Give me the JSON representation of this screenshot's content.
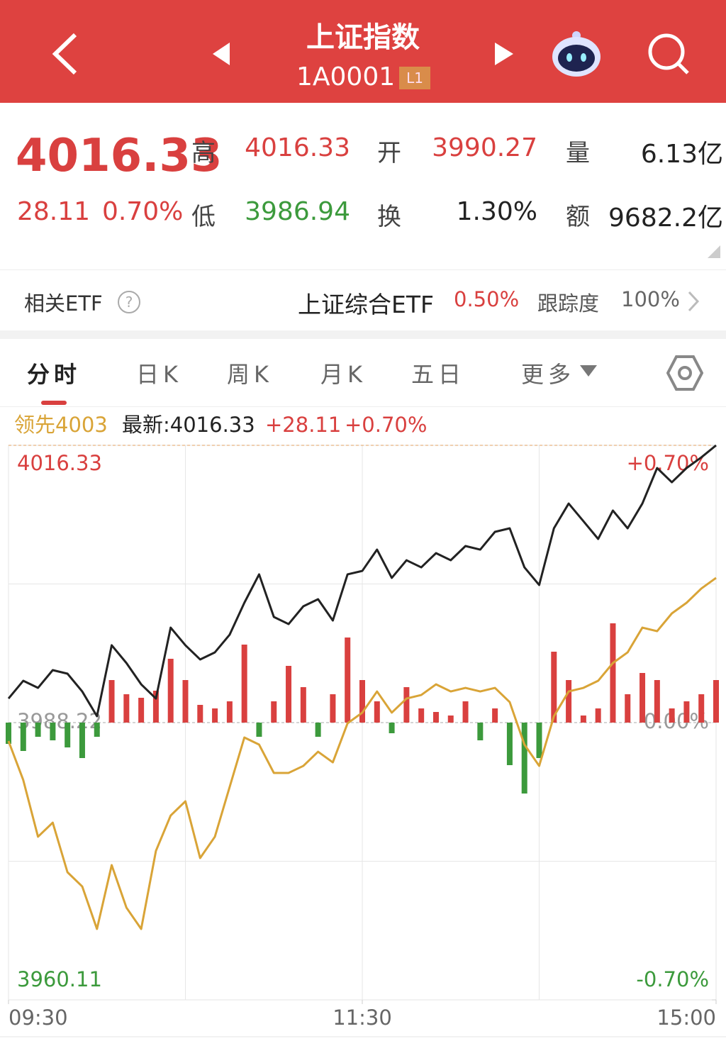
{
  "header": {
    "title": "上证指数",
    "code": "1A0001",
    "badge": "L1"
  },
  "quote": {
    "price": "4016.33",
    "change": "28.11",
    "change_pct": "0.70%",
    "items": [
      {
        "label": "高",
        "value": "4016.33"
      },
      {
        "label": "开",
        "value": "3990.27"
      },
      {
        "label": "量",
        "value": "6.13亿"
      },
      {
        "label": "低",
        "value": "3986.94"
      },
      {
        "label": "换",
        "value": "1.30%"
      },
      {
        "label": "额",
        "value": "9682.2亿"
      }
    ]
  },
  "etf": {
    "label": "相关ETF",
    "help": "?",
    "name": "上证综合ETF",
    "pct": "0.50%",
    "track_label": "跟踪度",
    "track": "100%"
  },
  "tabs": [
    "分时",
    "日K",
    "周K",
    "月K",
    "五日",
    "更多"
  ],
  "chart_data": {
    "type": "line",
    "legend_change": "+28.11",
    "legend_pct": "+0.70%",
    "x": [
      "09:30",
      "09:35",
      "09:40",
      "09:45",
      "09:50",
      "09:55",
      "10:00",
      "10:05",
      "10:10",
      "10:15",
      "10:20",
      "10:25",
      "10:30",
      "10:35",
      "10:40",
      "10:45",
      "10:50",
      "10:55",
      "11:00",
      "11:05",
      "11:10",
      "11:15",
      "11:20",
      "11:25",
      "11:30",
      "13:05",
      "13:10",
      "13:15",
      "13:20",
      "13:25",
      "13:30",
      "13:35",
      "13:40",
      "13:45",
      "13:50",
      "13:55",
      "14:00",
      "14:05",
      "14:10",
      "14:15",
      "14:20",
      "14:25",
      "14:30",
      "14:35",
      "14:40",
      "14:45",
      "14:50",
      "14:55",
      "15:00"
    ],
    "series": [
      {
        "name": "最新:4016.33",
        "color": "#222222",
        "values": [
          3990.66,
          3992.46,
          3991.74,
          3993.54,
          3993.18,
          3991.38,
          3988.87,
          3996.06,
          3994.26,
          3992.1,
          3990.66,
          3997.85,
          3996.06,
          3994.62,
          3995.34,
          3997.13,
          4000.37,
          4003.25,
          3998.93,
          3998.21,
          4000.01,
          4000.73,
          3998.57,
          4003.25,
          4003.6,
          4005.76,
          4002.89,
          4004.68,
          4003.96,
          4005.4,
          4004.68,
          4006.12,
          4005.76,
          4007.56,
          4007.92,
          4003.96,
          4002.17,
          4007.92,
          4010.43,
          4008.64,
          4006.84,
          4009.72,
          4007.92,
          4010.43,
          4014.03,
          4012.59,
          4014.03,
          4015.11,
          4016.33
        ]
      },
      {
        "name": "领先4003",
        "color": "#d9a437",
        "values": [
          3986.35,
          3982.4,
          3976.65,
          3978.08,
          3973.05,
          3971.61,
          3967.3,
          3973.77,
          3969.46,
          3967.3,
          3975.21,
          3978.8,
          3980.24,
          3974.49,
          3976.65,
          3981.68,
          3986.71,
          3985.99,
          3983.12,
          3983.12,
          3983.83,
          3985.27,
          3984.19,
          3988.15,
          3989.23,
          3991.38,
          3989.23,
          3990.66,
          3991.02,
          3992.1,
          3991.38,
          3991.74,
          3991.38,
          3991.74,
          3990.3,
          3985.99,
          3983.83,
          3988.87,
          3991.38,
          3991.74,
          3992.46,
          3994.26,
          3995.34,
          3997.85,
          3997.49,
          3999.29,
          4000.37,
          4001.81,
          4002.89
        ]
      },
      {
        "type": "bar",
        "axis": "y2",
        "up_color": "#d9403f",
        "down_color": "#3c9a3c",
        "values": [
          -30,
          -40,
          -20,
          -25,
          -35,
          -50,
          -20,
          60,
          40,
          35,
          45,
          90,
          60,
          25,
          20,
          30,
          110,
          -20,
          30,
          80,
          50,
          -20,
          40,
          120,
          60,
          30,
          -15,
          50,
          20,
          15,
          10,
          30,
          -25,
          20,
          -60,
          -100,
          -50,
          100,
          60,
          10,
          20,
          140,
          40,
          70,
          60,
          20,
          30,
          40,
          60
        ]
      }
    ],
    "ylim": [
      3960.11,
      4016.33
    ],
    "yticks": [
      4016.33,
      3988.22,
      3960.11
    ],
    "y2lim": [
      -391,
      391
    ],
    "y3lim": [
      -0.7,
      0.7
    ],
    "y3ticks": [
      {
        "value": 0.7,
        "label": "+0.70%"
      },
      {
        "value": 0,
        "label": "0.00%"
      },
      {
        "value": -0.7,
        "label": "-0.70%"
      }
    ],
    "xticks": [
      "09:30",
      "11:30",
      "15:00"
    ],
    "tick_colors": [
      "#d9403f",
      "#999999",
      "#3c9a3c"
    ]
  }
}
